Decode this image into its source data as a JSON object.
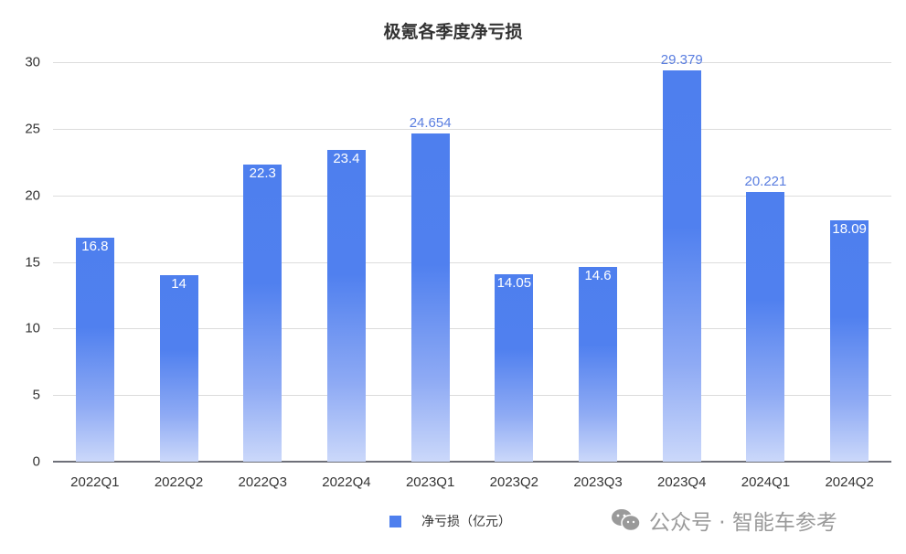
{
  "chart_data": {
    "type": "bar",
    "title": "极氪各季度净亏损",
    "categories": [
      "2022Q1",
      "2022Q2",
      "2022Q3",
      "2022Q4",
      "2023Q1",
      "2023Q2",
      "2023Q3",
      "2023Q4",
      "2024Q1",
      "2024Q2"
    ],
    "series": [
      {
        "name": "净亏损（亿元）",
        "values": [
          16.8,
          14,
          22.3,
          23.4,
          24.654,
          14.05,
          14.6,
          29.379,
          20.221,
          18.09
        ],
        "color": "#4e7fee"
      }
    ],
    "value_labels": [
      "16.8",
      "14",
      "22.3",
      "23.4",
      "24.654",
      "14.05",
      "14.6",
      "29.379",
      "20.221",
      "18.09"
    ],
    "xlabel": "",
    "ylabel": "",
    "ylim": [
      0,
      30
    ],
    "yticks": [
      0,
      5,
      10,
      15,
      20,
      25,
      30
    ],
    "grid": true,
    "legend_position": "bottom"
  },
  "title": "极氪各季度净亏损",
  "yticks": [
    "0",
    "5",
    "10",
    "15",
    "20",
    "25",
    "30"
  ],
  "legend": {
    "label": "净亏损（亿元）"
  },
  "watermark": {
    "text": "公众号 · 智能车参考"
  }
}
